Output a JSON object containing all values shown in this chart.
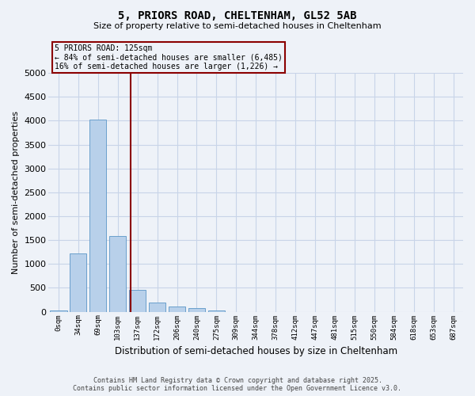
{
  "title_line1": "5, PRIORS ROAD, CHELTENHAM, GL52 5AB",
  "title_line2": "Size of property relative to semi-detached houses in Cheltenham",
  "xlabel": "Distribution of semi-detached houses by size in Cheltenham",
  "ylabel": "Number of semi-detached properties",
  "categories": [
    "0sqm",
    "34sqm",
    "69sqm",
    "103sqm",
    "137sqm",
    "172sqm",
    "206sqm",
    "240sqm",
    "275sqm",
    "309sqm",
    "344sqm",
    "378sqm",
    "412sqm",
    "447sqm",
    "481sqm",
    "515sqm",
    "550sqm",
    "584sqm",
    "618sqm",
    "653sqm",
    "687sqm"
  ],
  "bar_values": [
    30,
    1220,
    4020,
    1580,
    460,
    200,
    110,
    70,
    30,
    0,
    0,
    0,
    0,
    0,
    0,
    0,
    0,
    0,
    0,
    0,
    0
  ],
  "bar_color": "#b8d0ea",
  "bar_edge_color": "#6aa0cc",
  "grid_color": "#c8d4e8",
  "background_color": "#eef2f8",
  "vline_color": "#8b0000",
  "annotation_text": "5 PRIORS ROAD: 125sqm\n← 84% of semi-detached houses are smaller (6,485)\n16% of semi-detached houses are larger (1,226) →",
  "annotation_box_color": "#8b0000",
  "ylim": [
    0,
    5000
  ],
  "yticks": [
    0,
    500,
    1000,
    1500,
    2000,
    2500,
    3000,
    3500,
    4000,
    4500,
    5000
  ],
  "footer_line1": "Contains HM Land Registry data © Crown copyright and database right 2025.",
  "footer_line2": "Contains public sector information licensed under the Open Government Licence v3.0."
}
